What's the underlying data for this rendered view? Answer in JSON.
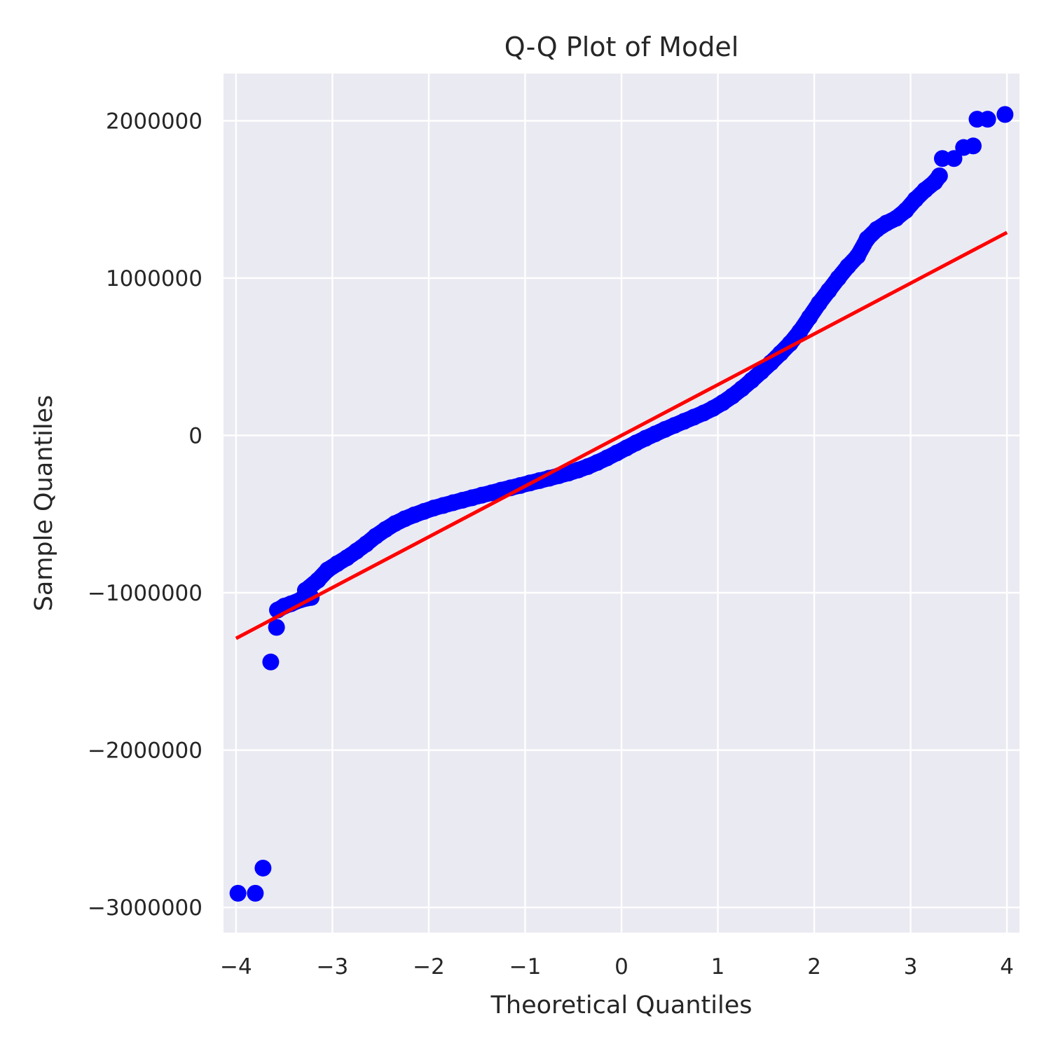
{
  "chart_data": {
    "type": "scatter",
    "title": "Q-Q Plot of Model",
    "xlabel": "Theoretical Quantiles",
    "ylabel": "Sample Quantiles",
    "xlim": [
      -4.13,
      4.13
    ],
    "ylim": [
      -3160000,
      2300000
    ],
    "grid": true,
    "x_ticks": [
      -4,
      -3,
      -2,
      -1,
      0,
      1,
      2,
      3,
      4
    ],
    "x_tick_labels": [
      "−4",
      "−3",
      "−2",
      "−1",
      "0",
      "1",
      "2",
      "3",
      "4"
    ],
    "y_ticks": [
      -3000000,
      -2000000,
      -1000000,
      0,
      1000000,
      2000000
    ],
    "y_tick_labels": [
      "−3000000",
      "−2000000",
      "−1000000",
      "0",
      "1000000",
      "2000000"
    ],
    "colors": {
      "points": "#0000ff",
      "line": "#ff0000",
      "background": "#eaeaf2",
      "grid": "#ffffff"
    },
    "series": [
      {
        "type": "scatter",
        "points": [
          [
            -3.98,
            -2910000
          ],
          [
            -3.8,
            -2910000
          ],
          [
            -3.72,
            -2750000
          ],
          [
            -3.64,
            -1440000
          ],
          [
            -3.58,
            -1220000
          ],
          [
            -3.57,
            -1110000
          ],
          [
            -3.5,
            -1085000
          ],
          [
            -3.43,
            -1070000
          ],
          [
            -3.33,
            -1045000
          ],
          [
            -3.22,
            -1030000
          ],
          [
            -3.28,
            -985000
          ],
          [
            -3.15,
            -920000
          ],
          [
            -3.05,
            -855000
          ],
          [
            -2.95,
            -815000
          ],
          [
            -2.85,
            -778000
          ],
          [
            -2.75,
            -735000
          ],
          [
            -2.65,
            -690000
          ],
          [
            -2.55,
            -640000
          ],
          [
            -2.45,
            -598000
          ],
          [
            -2.35,
            -560000
          ],
          [
            -2.25,
            -530000
          ],
          [
            -2.15,
            -505000
          ],
          [
            -2.05,
            -483000
          ],
          [
            -1.95,
            -462000
          ],
          [
            -1.85,
            -445000
          ],
          [
            -1.75,
            -428000
          ],
          [
            -1.65,
            -412000
          ],
          [
            -1.55,
            -396000
          ],
          [
            -1.45,
            -380000
          ],
          [
            -1.35,
            -365000
          ],
          [
            -1.25,
            -348000
          ],
          [
            -1.15,
            -333000
          ],
          [
            -1.05,
            -318000
          ],
          [
            -0.95,
            -302000
          ],
          [
            -0.85,
            -287000
          ],
          [
            -0.75,
            -272000
          ],
          [
            -0.65,
            -256000
          ],
          [
            -0.55,
            -239000
          ],
          [
            -0.45,
            -220000
          ],
          [
            -0.35,
            -198000
          ],
          [
            -0.25,
            -172000
          ],
          [
            -0.15,
            -143000
          ],
          [
            -0.05,
            -112000
          ],
          [
            0.05,
            -80000
          ],
          [
            0.15,
            -48000
          ],
          [
            0.25,
            -18000
          ],
          [
            0.35,
            10000
          ],
          [
            0.45,
            38000
          ],
          [
            0.55,
            64000
          ],
          [
            0.65,
            90000
          ],
          [
            0.75,
            116000
          ],
          [
            0.85,
            142000
          ],
          [
            0.95,
            172000
          ],
          [
            1.05,
            208000
          ],
          [
            1.15,
            250000
          ],
          [
            1.25,
            298000
          ],
          [
            1.35,
            350000
          ],
          [
            1.45,
            405000
          ],
          [
            1.55,
            462000
          ],
          [
            1.65,
            522000
          ],
          [
            1.75,
            585000
          ],
          [
            1.85,
            660000
          ],
          [
            1.95,
            750000
          ],
          [
            2.05,
            840000
          ],
          [
            2.15,
            920000
          ],
          [
            2.25,
            1000000
          ],
          [
            2.35,
            1075000
          ],
          [
            2.45,
            1140000
          ],
          [
            2.55,
            1250000
          ],
          [
            2.65,
            1310000
          ],
          [
            2.75,
            1350000
          ],
          [
            2.85,
            1380000
          ],
          [
            2.95,
            1430000
          ],
          [
            3.05,
            1500000
          ],
          [
            3.15,
            1560000
          ],
          [
            3.25,
            1610000
          ],
          [
            3.3,
            1650000
          ],
          [
            3.33,
            1760000
          ],
          [
            3.45,
            1760000
          ],
          [
            3.55,
            1830000
          ],
          [
            3.65,
            1840000
          ],
          [
            3.69,
            2010000
          ],
          [
            3.8,
            2010000
          ],
          [
            3.98,
            2040000
          ]
        ]
      },
      {
        "type": "line",
        "points": [
          [
            -4.0,
            -1290000
          ],
          [
            4.0,
            1290000
          ]
        ]
      }
    ]
  }
}
